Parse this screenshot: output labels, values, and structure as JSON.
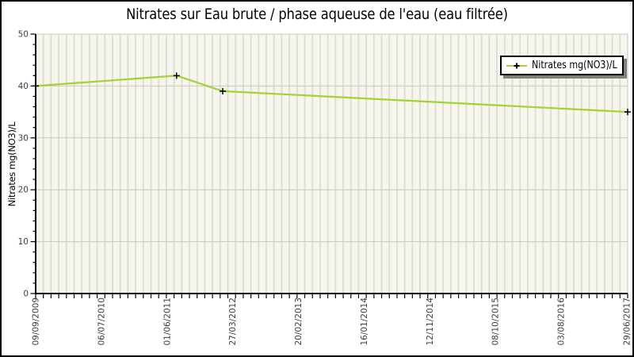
{
  "chart_data": {
    "type": "line",
    "title": "Nitrates sur Eau brute / phase aqueuse de l'eau (eau filtrée)",
    "ylabel": "Nitrates mg(NO3)/L",
    "xlabel": "",
    "legend": [
      "Nitrates mg(NO3)/L"
    ],
    "legend_position": "top-right",
    "ylim": [
      0,
      50
    ],
    "y_major_ticks": [
      0,
      10,
      20,
      30,
      40,
      50
    ],
    "y_minor_step": 2,
    "x_tick_labels": [
      "09/09/2009",
      "06/07/2010",
      "01/06/2011",
      "27/03/2012",
      "20/02/2013",
      "16/01/2014",
      "12/11/2014",
      "08/10/2015",
      "03/08/2016",
      "29/06/2017"
    ],
    "grid": {
      "vertical_minor": true,
      "horizontal_major": true,
      "n_vertical_minor": 77
    },
    "series": [
      {
        "name": "Nitrates mg(NO3)/L",
        "marker": "plus",
        "points": [
          {
            "x_frac": 0.0,
            "value": 40.0
          },
          {
            "x_frac": 0.238,
            "value": 42.0
          },
          {
            "x_frac": 0.316,
            "value": 39.0
          },
          {
            "x_frac": 1.0,
            "value": 35.0
          }
        ]
      }
    ],
    "colors": {
      "line": "#a3d233",
      "marker": "#000000",
      "plot_bg": "#f6f6ec",
      "stripe": "#dcdcd3",
      "gridline": "#c9c9c1",
      "axis": "#000000",
      "tick_label": "#3d3d3d",
      "legend_shadow": "#7f7f7f",
      "frame_border": "#000000"
    }
  }
}
